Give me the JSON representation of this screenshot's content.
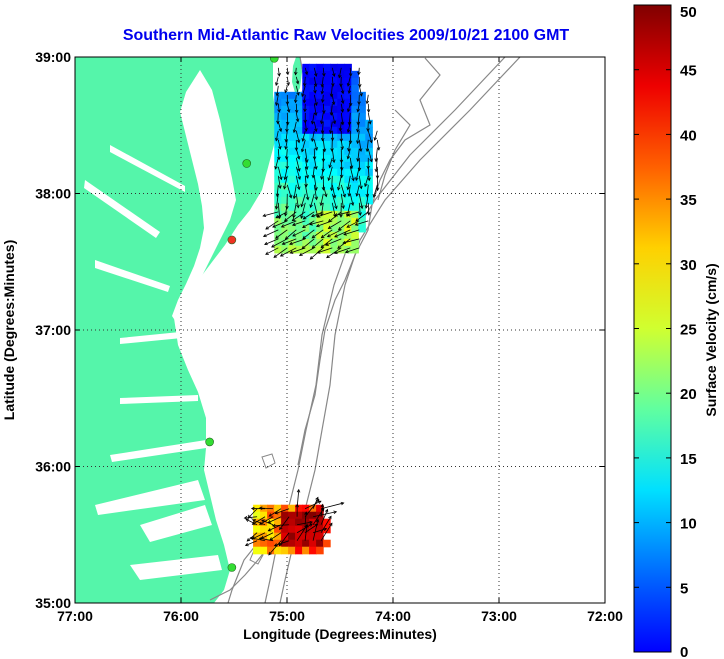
{
  "chart_data": {
    "type": "map",
    "title": "Southern Mid-Atlantic Raw Velocities 2009/10/21 2100 GMT",
    "xlabel": "Longitude (Degrees:Minutes)",
    "ylabel": "Latitude (Degrees:Minutes)",
    "xlim": [
      -77,
      -72
    ],
    "ylim": [
      35,
      39
    ],
    "x_ticks": [
      {
        "value": -77,
        "label": "77:00"
      },
      {
        "value": -76,
        "label": "76:00"
      },
      {
        "value": -75,
        "label": "75:00"
      },
      {
        "value": -74,
        "label": "74:00"
      },
      {
        "value": -73,
        "label": "73:00"
      },
      {
        "value": -72,
        "label": "72:00"
      }
    ],
    "y_ticks": [
      {
        "value": 35,
        "label": "35:00"
      },
      {
        "value": 36,
        "label": "36:00"
      },
      {
        "value": 37,
        "label": "37:00"
      },
      {
        "value": 38,
        "label": "38:00"
      },
      {
        "value": 39,
        "label": "39:00"
      }
    ],
    "grid": true,
    "land_color": "#55f5aa",
    "contour_color": "#888888",
    "colorbar": {
      "label": "Surface Velocity (cm/s)",
      "range": [
        0,
        50
      ],
      "ticks": [
        "0",
        "5",
        "10",
        "15",
        "20",
        "25",
        "30",
        "35",
        "40",
        "45",
        "50"
      ]
    },
    "stations": [
      {
        "lon": -75.12,
        "lat": 38.99,
        "color": "#33dd33"
      },
      {
        "lon": -75.38,
        "lat": 38.22,
        "color": "#33dd33"
      },
      {
        "lon": -75.52,
        "lat": 37.66,
        "color": "#ee3322"
      },
      {
        "lon": -75.73,
        "lat": 36.18,
        "color": "#33dd33"
      },
      {
        "lon": -75.52,
        "lat": 35.26,
        "color": "#33dd33"
      }
    ],
    "velocity_fields": [
      {
        "region": "north",
        "lon_range": [
          -75.12,
          -74.12
        ],
        "lat_range": [
          37.6,
          38.95
        ],
        "speed_range_cm_s": [
          5,
          30
        ],
        "mean_direction": "south"
      },
      {
        "region": "south",
        "lon_range": [
          -75.32,
          -74.62
        ],
        "lat_range": [
          35.4,
          35.72
        ],
        "speed_range_cm_s": [
          20,
          50
        ],
        "mean_direction": "variable"
      }
    ]
  }
}
